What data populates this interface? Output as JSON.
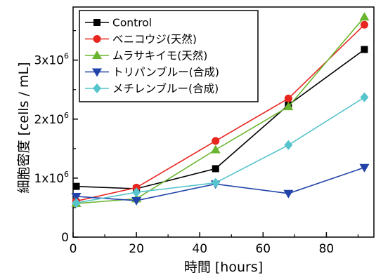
{
  "chart_data": {
    "type": "line",
    "title": "",
    "xlabel": "時間 [hours]",
    "ylabel": "細胞密度 [cells / mL]",
    "xlim": [
      0,
      95
    ],
    "ylim": [
      0,
      3900000
    ],
    "x_ticks": [
      0,
      20,
      40,
      60,
      80
    ],
    "x_tick_labels": [
      "0",
      "20",
      "40",
      "60",
      "80"
    ],
    "y_ticks": [
      0,
      1000000,
      2000000,
      3000000
    ],
    "y_tick_labels": [
      {
        "base": "0",
        "exp": ""
      },
      {
        "base": "1x10",
        "exp": "6"
      },
      {
        "base": "2x10",
        "exp": "6"
      },
      {
        "base": "3x10",
        "exp": "6"
      }
    ],
    "legend_position": "top-left",
    "grid": false,
    "series": [
      {
        "name": "Control",
        "color": "#000000",
        "marker": "square",
        "x": [
          1,
          20,
          45,
          68,
          92
        ],
        "y": [
          860000,
          820000,
          1160000,
          2240000,
          3180000
        ]
      },
      {
        "name": "ベニコウジ(天然)",
        "color": "#e8251f",
        "marker": "circle",
        "x": [
          1,
          20,
          45,
          68,
          92
        ],
        "y": [
          610000,
          840000,
          1630000,
          2350000,
          3600000
        ]
      },
      {
        "name": "ムラサキイモ(天然)",
        "color": "#6ab52f",
        "marker": "triangle-up",
        "x": [
          1,
          20,
          45,
          68,
          92
        ],
        "y": [
          570000,
          650000,
          1480000,
          2210000,
          3730000
        ]
      },
      {
        "name": "トリパンブルー(合成)",
        "color": "#2244aa",
        "marker": "triangle-down",
        "x": [
          1,
          20,
          45,
          68,
          92
        ],
        "y": [
          690000,
          620000,
          900000,
          740000,
          1180000
        ]
      },
      {
        "name": "メチレンブルー(合成)",
        "color": "#55c4cc",
        "marker": "diamond",
        "x": [
          1,
          20,
          45,
          68,
          92
        ],
        "y": [
          580000,
          760000,
          920000,
          1560000,
          2370000
        ]
      }
    ]
  }
}
